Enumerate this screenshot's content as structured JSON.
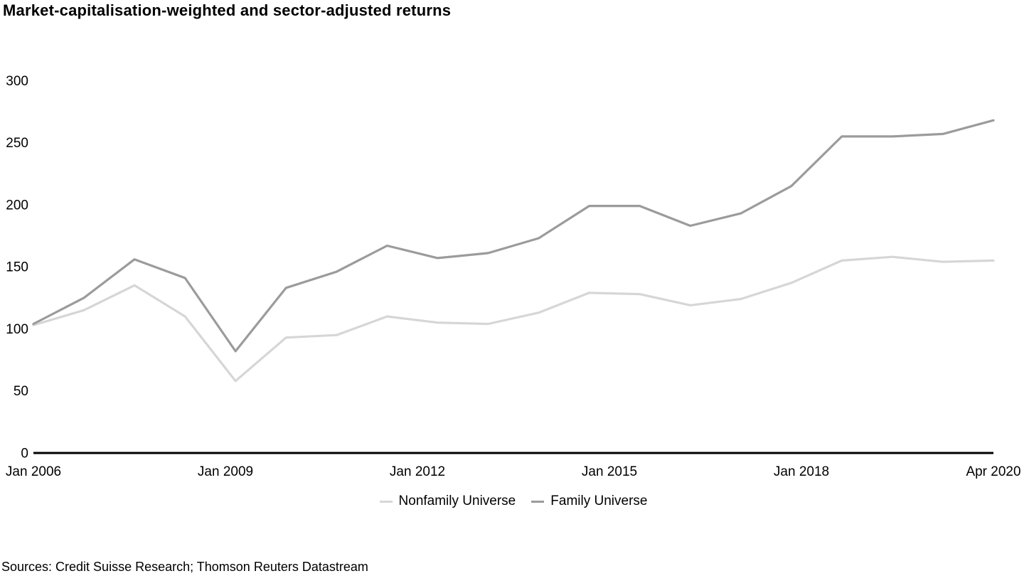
{
  "title": "Market-capitalisation-weighted and sector-adjusted returns",
  "source_note": "Sources: Credit Suisse Research; Thomson Reuters Datastream",
  "chart_data": {
    "type": "line",
    "title": "Market-capitalisation-weighted and sector-adjusted returns",
    "xlabel": "",
    "ylabel": "",
    "ylim": [
      0,
      300
    ],
    "yticks": [
      0,
      50,
      100,
      150,
      200,
      250,
      300
    ],
    "x_tick_labels": [
      "Jan 2006",
      "Jan 2009",
      "Jan 2012",
      "Jan 2015",
      "Jan 2018",
      "Apr 2020"
    ],
    "categories": [
      "Jan 2006",
      "Oct 2006",
      "Jul 2007",
      "Apr 2008",
      "Jan 2009",
      "Oct 2009",
      "Jul 2010",
      "Apr 2011",
      "Jan 2012",
      "Oct 2012",
      "Jul 2013",
      "Apr 2014",
      "Jan 2015",
      "Oct 2015",
      "Jul 2016",
      "Apr 2017",
      "Jan 2018",
      "Oct 2018",
      "Jul 2019",
      "Apr 2020"
    ],
    "series": [
      {
        "name": "Nonfamily Universe",
        "color": "#d6d6d6",
        "values": [
          103,
          115,
          135,
          110,
          58,
          93,
          95,
          110,
          105,
          104,
          113,
          129,
          128,
          119,
          124,
          137,
          155,
          158,
          154,
          155
        ]
      },
      {
        "name": "Family Universe",
        "color": "#9b9b9b",
        "values": [
          104,
          125,
          156,
          141,
          82,
          133,
          146,
          167,
          157,
          161,
          173,
          199,
          199,
          183,
          193,
          215,
          255,
          255,
          257,
          268
        ]
      }
    ],
    "grid": false,
    "legend_position": "bottom-center",
    "axis_color": "#000000"
  }
}
